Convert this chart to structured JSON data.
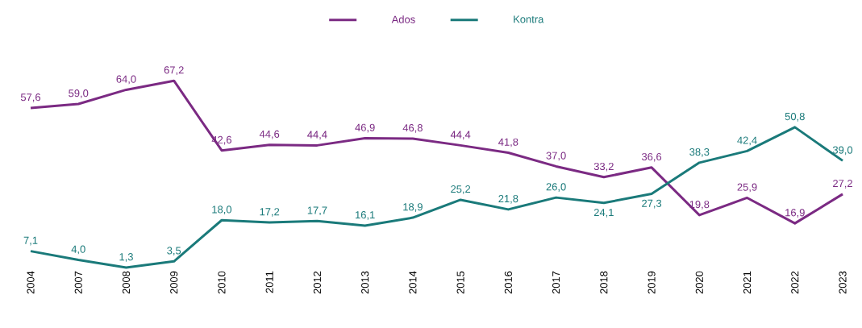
{
  "chart_data": {
    "type": "line",
    "categories": [
      "2004",
      "2007",
      "2008",
      "2009",
      "2010",
      "2011",
      "2012",
      "2013",
      "2014",
      "2015",
      "2016",
      "2017",
      "2018",
      "2019",
      "2020",
      "2021",
      "2022",
      "2023"
    ],
    "series": [
      {
        "name": "Ados",
        "color": "#7b2a83",
        "values": [
          57.6,
          59.0,
          64.0,
          67.2,
          42.6,
          44.6,
          44.4,
          46.9,
          46.8,
          44.4,
          41.8,
          37.0,
          33.2,
          36.6,
          19.8,
          25.9,
          16.9,
          27.2
        ],
        "value_labels": [
          "57,6",
          "59,0",
          "64,0",
          "67,2",
          "42,6",
          "44,6",
          "44,4",
          "46,9",
          "46,8",
          "44,4",
          "41,8",
          "37,0",
          "33,2",
          "36,6",
          "19,8",
          "25,9",
          "16,9",
          "27,2"
        ]
      },
      {
        "name": "Kontra",
        "color": "#1a7a7a",
        "values": [
          7.1,
          4.0,
          1.3,
          3.5,
          18.0,
          17.2,
          17.7,
          16.1,
          18.9,
          25.2,
          21.8,
          26.0,
          24.1,
          27.3,
          38.3,
          42.4,
          50.8,
          39.0
        ],
        "value_labels": [
          "7,1",
          "4,0",
          "1,3",
          "3,5",
          "18,0",
          "17,2",
          "17,7",
          "16,1",
          "18,9",
          "25,2",
          "21,8",
          "26,0",
          "24,1",
          "27,3",
          "38,3",
          "42,4",
          "50,8",
          "39,0"
        ]
      }
    ],
    "legend": "top",
    "marker": "none",
    "line_style": "solid",
    "grid": false
  }
}
